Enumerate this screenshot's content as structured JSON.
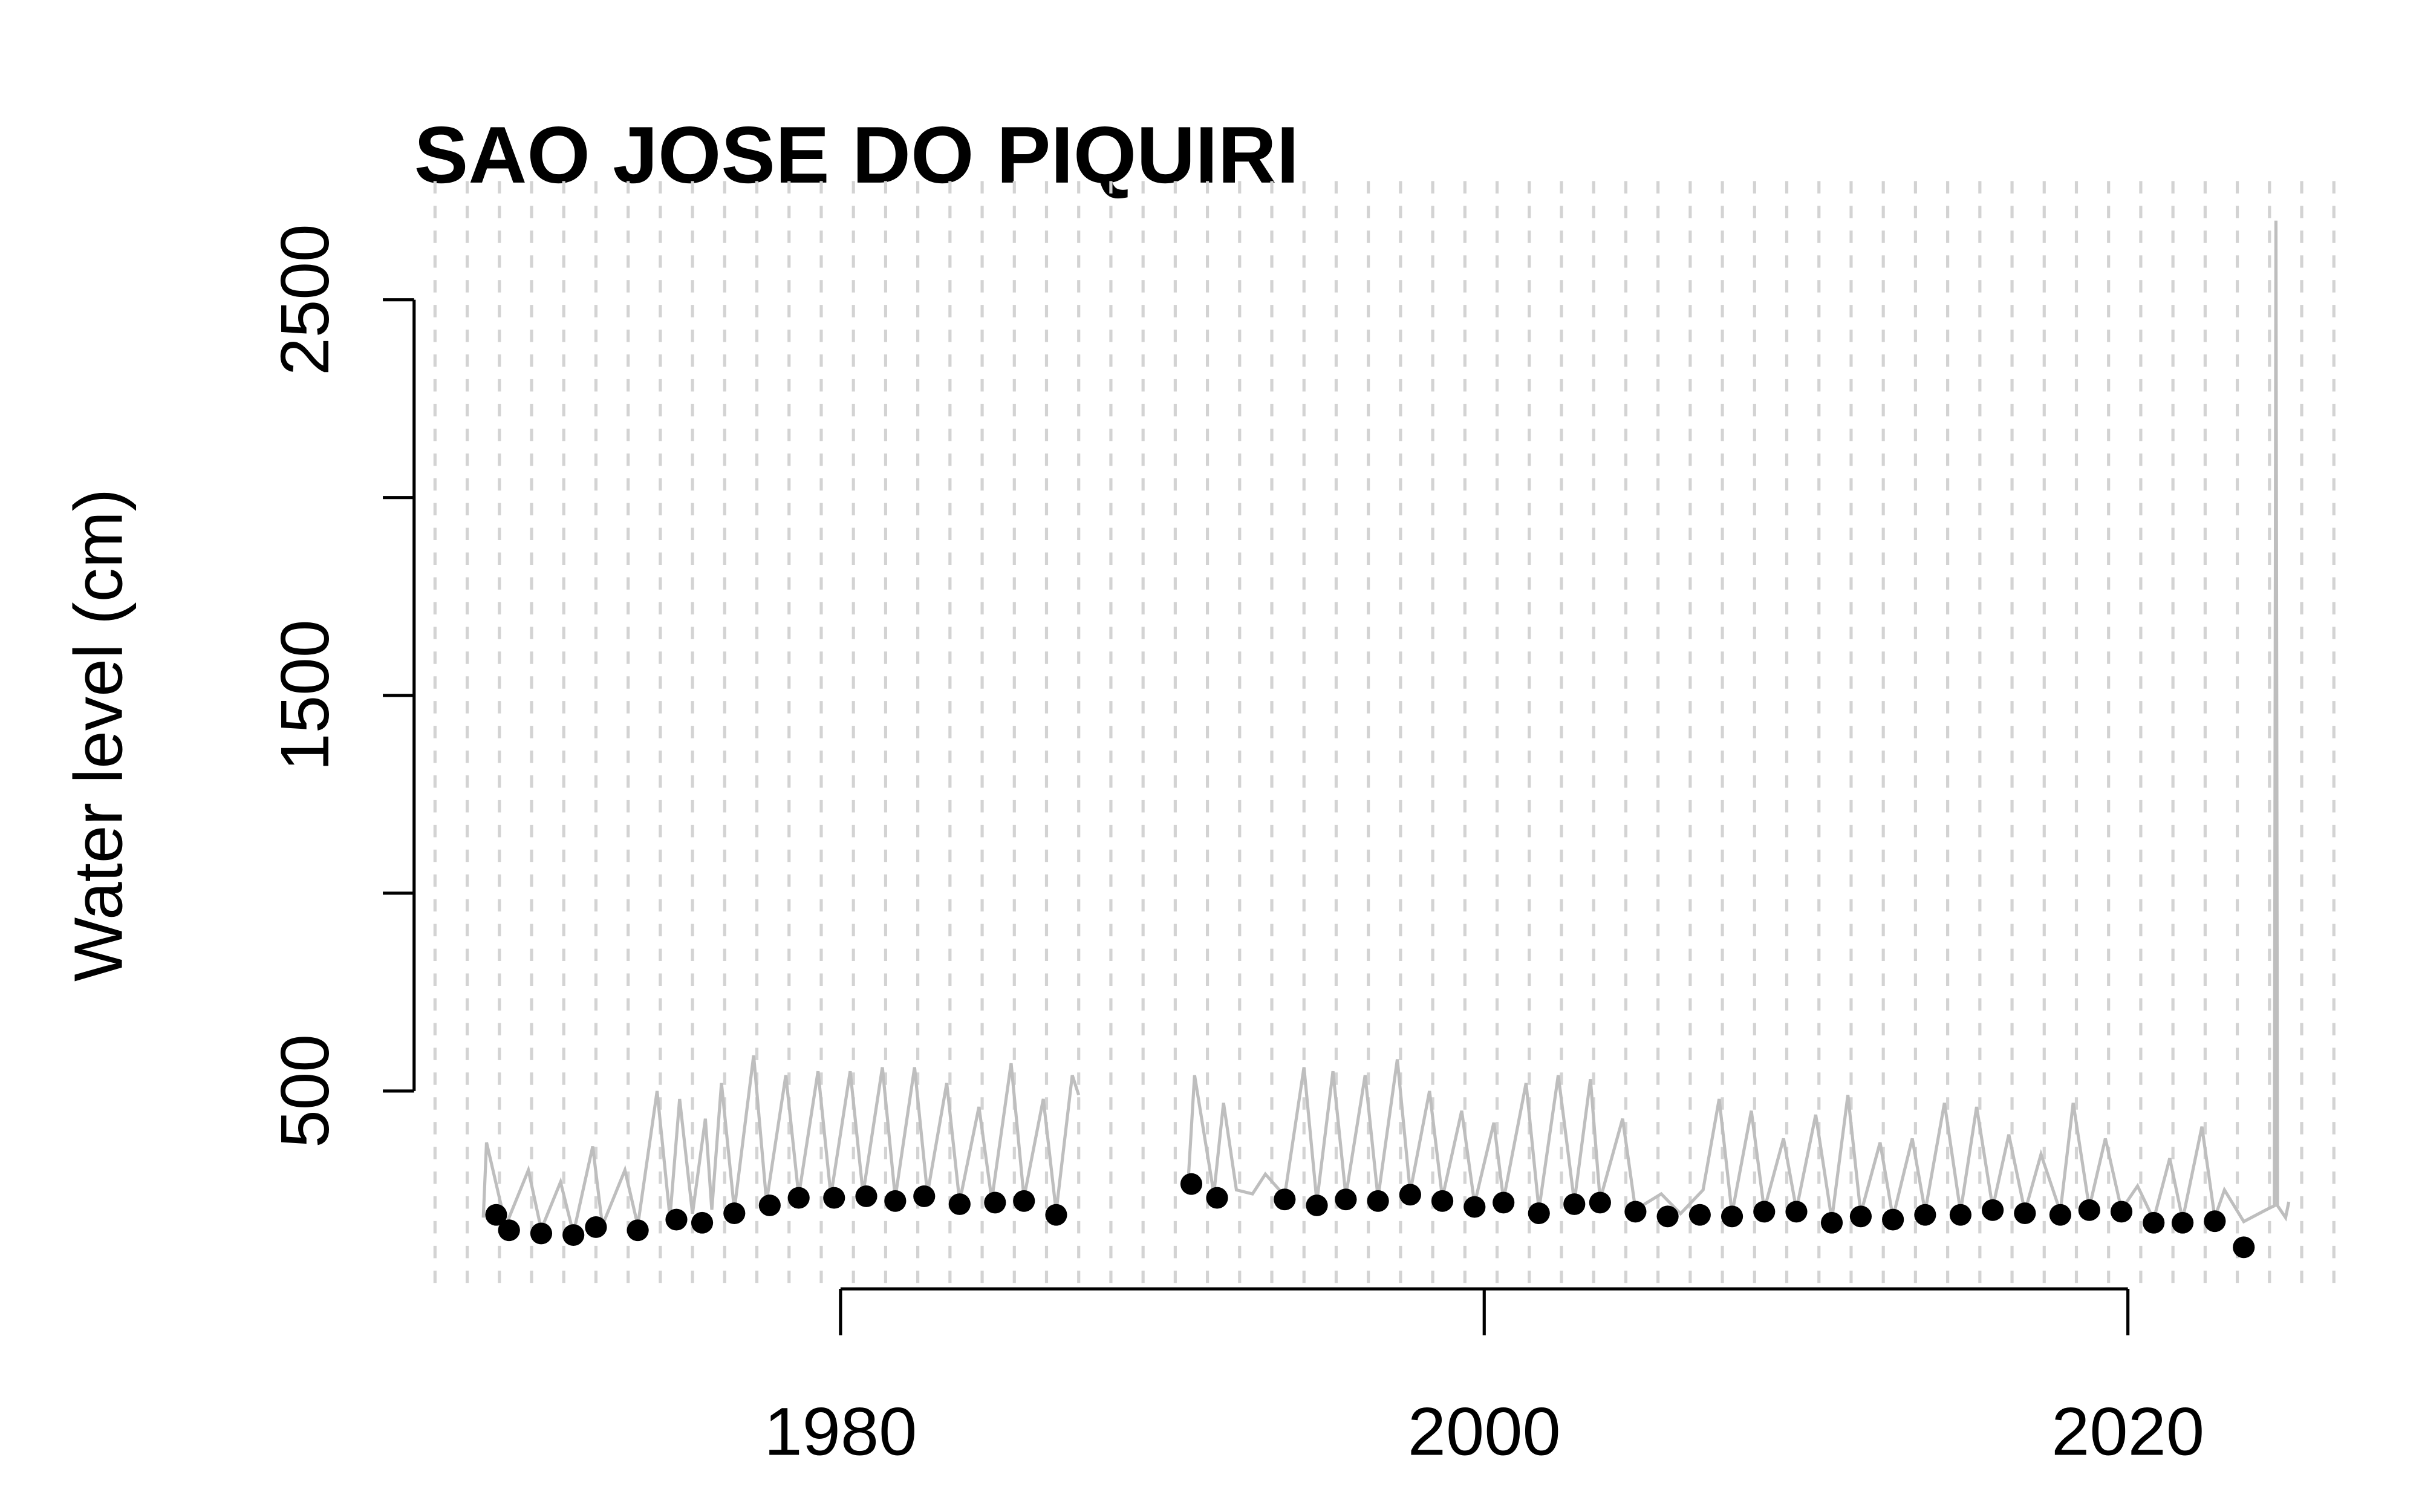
{
  "chart_data": {
    "type": "line-points",
    "title": "SAO JOSE DO PIQUIRI",
    "y_label": "Water level (cm)",
    "xlim": [
      1966.75,
      2027.2
    ],
    "ylim": [
      0,
      2800
    ],
    "xticks": [
      1980,
      2000,
      2020
    ],
    "yticks": [
      500,
      {
        "value": 1000,
        "label": null
      },
      1500,
      {
        "value": 2000,
        "label": null
      },
      2500
    ],
    "vlines": [
      1967.4,
      1968.4,
      1969.4,
      1970.4,
      1971.4,
      1972.4,
      1973.4,
      1974.4,
      1975.4,
      1976.4,
      1977.4,
      1978.4,
      1979.4,
      1980.4,
      1981.4,
      1982.4,
      1983.4,
      1984.4,
      1985.4,
      1986.4,
      1987.4,
      1988.4,
      1989.4,
      1990.4,
      1991.4,
      1992.4,
      1993.4,
      1994.4,
      1995.4,
      1996.4,
      1997.4,
      1998.4,
      1999.4,
      2000.4,
      2001.4,
      2002.4,
      2003.4,
      2004.4,
      2005.4,
      2006.4,
      2007.4,
      2008.4,
      2009.4,
      2010.4,
      2011.4,
      2012.4,
      2013.4,
      2014.4,
      2015.4,
      2016.4,
      2017.4,
      2018.4,
      2019.4,
      2020.4,
      2021.4,
      2022.4,
      2023.4,
      2024.4,
      2025.4,
      2026.4
    ],
    "vline_color": "#d3d3d3",
    "line": {
      "color": "#bebebe",
      "x": [
        1968.9,
        1969.0,
        1969.6,
        1970.3,
        1970.7,
        1971.3,
        1971.7,
        1972.3,
        1972.6,
        1973.3,
        1973.7,
        1974.3,
        1974.7,
        1975.0,
        1975.4,
        1975.8,
        1976.0,
        1976.3,
        1976.7,
        1977.3,
        1977.7,
        1978.3,
        1978.7,
        1979.3,
        1979.7,
        1980.3,
        1980.7,
        1981.3,
        1981.7,
        1982.3,
        1982.7,
        1983.3,
        1983.7,
        1984.3,
        1984.7,
        1985.3,
        1985.7,
        1986.3,
        1986.7,
        1987.2,
        1987.4,
        1989.0,
        1990.8,
        1991.0,
        1991.6,
        1991.9,
        1992.3,
        1992.8,
        1993.2,
        1993.8,
        1994.4,
        1994.8,
        1995.3,
        1995.7,
        1996.3,
        1996.7,
        1997.3,
        1997.7,
        1998.3,
        1998.7,
        1999.3,
        1999.7,
        2000.3,
        2000.6,
        2001.3,
        2001.7,
        2002.3,
        2002.8,
        2003.3,
        2003.6,
        2004.3,
        2004.7,
        2005.5,
        2006.1,
        2006.8,
        2007.3,
        2007.7,
        2008.3,
        2008.7,
        2009.3,
        2009.7,
        2010.3,
        2010.8,
        2011.3,
        2011.7,
        2012.3,
        2012.7,
        2013.3,
        2013.7,
        2014.3,
        2014.8,
        2015.3,
        2015.8,
        2016.3,
        2016.8,
        2017.3,
        2017.9,
        2018.3,
        2018.8,
        2019.3,
        2019.8,
        2020.3,
        2020.8,
        2021.3,
        2021.7,
        2022.3,
        2022.7,
        2023.0,
        2023.6,
        2024.3,
        2024.55,
        2024.6,
        2024.65,
        2024.9,
        2025.0
      ],
      "values": [
        180,
        370,
        160,
        300,
        150,
        270,
        140,
        360,
        160,
        300,
        160,
        500,
        180,
        480,
        190,
        430,
        200,
        520,
        200,
        590,
        220,
        540,
        235,
        550,
        235,
        550,
        240,
        560,
        230,
        560,
        240,
        520,
        220,
        460,
        225,
        570,
        230,
        480,
        195,
        540,
        490,
        null,
        270,
        540,
        240,
        470,
        250,
        240,
        290,
        235,
        560,
        220,
        550,
        235,
        540,
        230,
        580,
        245,
        500,
        230,
        450,
        215,
        420,
        225,
        520,
        200,
        540,
        220,
        530,
        225,
        430,
        200,
        240,
        190,
        250,
        480,
        190,
        450,
        200,
        380,
        200,
        440,
        175,
        490,
        190,
        370,
        180,
        380,
        195,
        470,
        195,
        460,
        205,
        390,
        195,
        340,
        195,
        470,
        205,
        380,
        200,
        260,
        175,
        330,
        175,
        410,
        180,
        250,
        170,
        200,
        210,
        2700,
        210,
        180,
        220
      ]
    },
    "points": {
      "color": "#000000",
      "x": [
        1969.3,
        1969.7,
        1970.7,
        1971.7,
        1972.4,
        1973.7,
        1974.9,
        1975.7,
        1976.7,
        1977.8,
        1978.7,
        1979.8,
        1980.8,
        1981.7,
        1982.6,
        1983.7,
        1984.8,
        1985.7,
        1986.7,
        1990.9,
        1991.7,
        1993.8,
        1994.8,
        1995.7,
        1996.7,
        1997.7,
        1998.7,
        1999.7,
        2000.6,
        2001.7,
        2002.8,
        2003.6,
        2004.7,
        2005.7,
        2006.7,
        2007.7,
        2008.7,
        2009.7,
        2010.8,
        2011.7,
        2012.7,
        2013.7,
        2014.8,
        2015.8,
        2016.8,
        2017.9,
        2018.8,
        2019.8,
        2020.8,
        2021.7,
        2022.7,
        2023.6
      ],
      "values": [
        187,
        148,
        140,
        136,
        156,
        148,
        175,
        167,
        191,
        211,
        230,
        230,
        234,
        222,
        234,
        214,
        218,
        222,
        187,
        265,
        230,
        226,
        211,
        226,
        222,
        238,
        222,
        207,
        218,
        191,
        214,
        218,
        195,
        183,
        187,
        183,
        195,
        195,
        167,
        183,
        175,
        187,
        187,
        199,
        191,
        187,
        199,
        195,
        167,
        167,
        171,
        105
      ]
    }
  }
}
